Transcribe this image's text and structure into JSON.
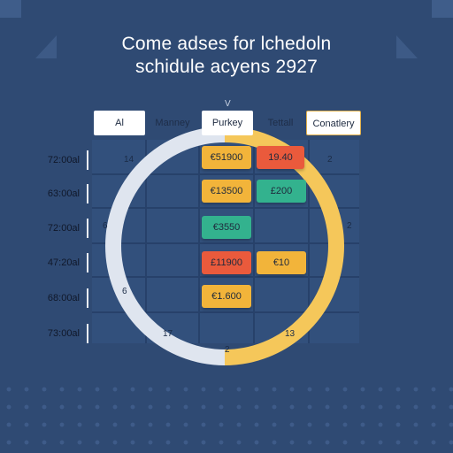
{
  "title": {
    "line1": "Come adses for lchedoln",
    "line2": "schidule acyens 2927"
  },
  "header_marker": "V",
  "columns": [
    {
      "label": "Al"
    },
    {
      "label": "Manney"
    },
    {
      "label": "Purkey"
    },
    {
      "label": "Tettall"
    },
    {
      "label": "Conatlery"
    }
  ],
  "rows": [
    {
      "label": "72:00al"
    },
    {
      "label": "63:00al"
    },
    {
      "label": "72:00al"
    },
    {
      "label": "47:20al"
    },
    {
      "label": "68:00al"
    },
    {
      "label": "73:00al"
    }
  ],
  "events": [
    {
      "label": "€51900",
      "color": "#f2b43a"
    },
    {
      "label": "19.40",
      "color": "#ea5a3c"
    },
    {
      "label": "€13500",
      "color": "#f2b43a"
    },
    {
      "label": "£200",
      "color": "#33b28e"
    },
    {
      "label": "€3550",
      "color": "#33b28e"
    },
    {
      "label": "£11900",
      "color": "#ea5a3c"
    },
    {
      "label": "€10",
      "color": "#f2b43a"
    },
    {
      "label": "€1.600",
      "color": "#f2b43a"
    }
  ],
  "ring_numbers": [
    "14",
    "2",
    "6",
    "2",
    "6",
    "17",
    "13",
    "2"
  ],
  "colors": {
    "background": "#2f4a73",
    "ring_light": "#dfe5ef",
    "ring_accent": "#f5c75a"
  }
}
